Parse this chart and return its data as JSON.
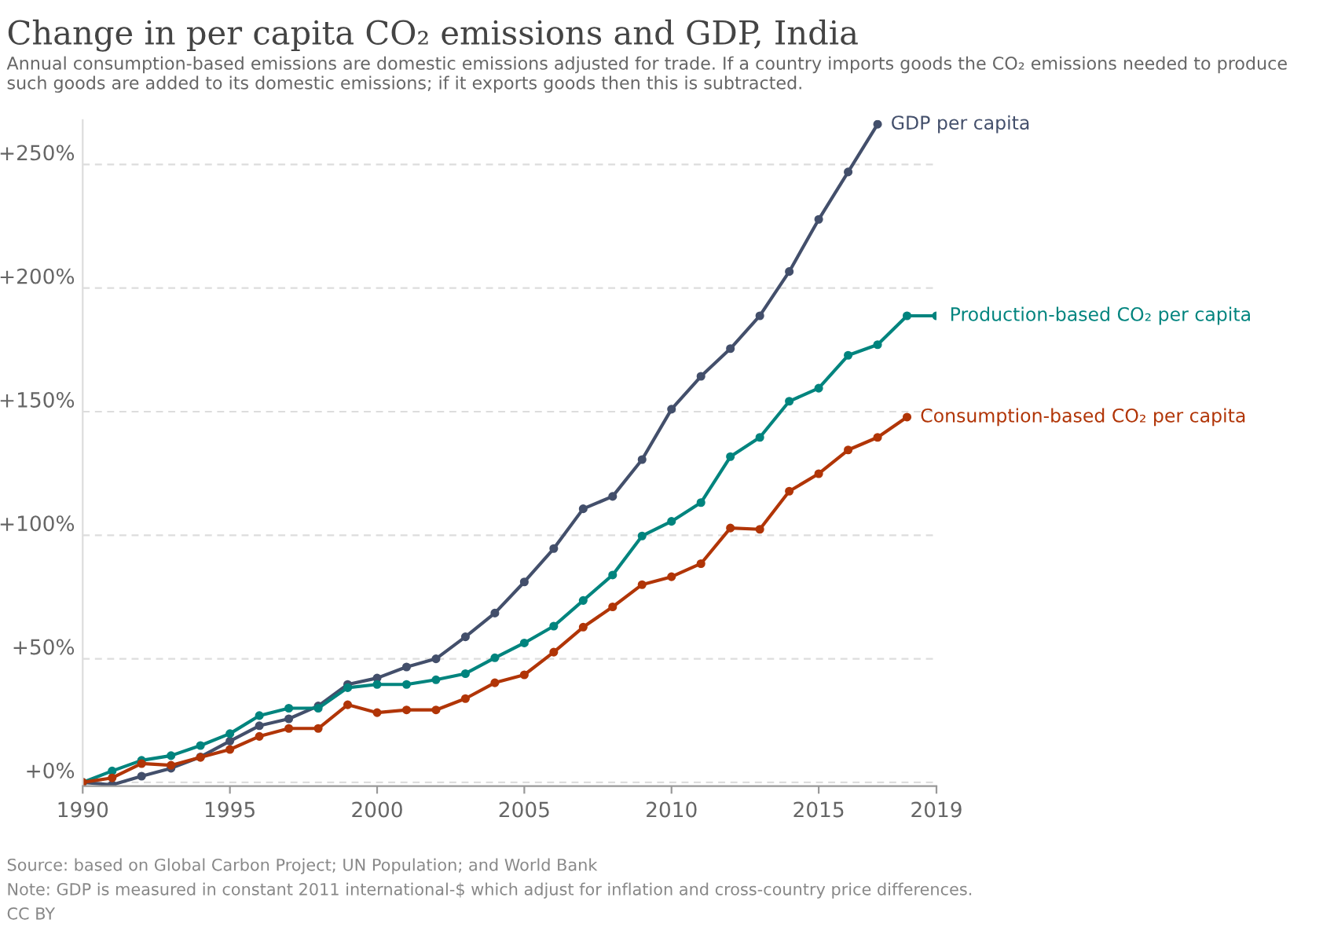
{
  "chart_data": {
    "type": "line",
    "title": "Change in per capita CO₂ emissions and GDP, India",
    "subtitle": "Annual consumption-based emissions are domestic emissions adjusted for trade. If a country imports goods the CO₂ emissions needed to produce such goods are added to its domestic emissions; if it exports goods then this is subtracted.",
    "x": [
      1990,
      1991,
      1992,
      1993,
      1994,
      1995,
      1996,
      1997,
      1998,
      1999,
      2000,
      2001,
      2002,
      2003,
      2004,
      2005,
      2006,
      2007,
      2008,
      2009,
      2010,
      2011,
      2012,
      2013,
      2014,
      2015,
      2016,
      2017,
      2018,
      2019
    ],
    "series": [
      {
        "name": "GDP per capita",
        "color": "#434f6b",
        "values": [
          0,
          -1,
          2.5,
          5.7,
          10.3,
          16.7,
          22.9,
          25.7,
          30.9,
          39.6,
          42.2,
          46.7,
          50.0,
          58.9,
          68.5,
          81.1,
          94.6,
          110.7,
          115.7,
          130.6,
          151.0,
          164.3,
          175.5,
          188.8,
          206.7,
          227.8,
          247.0,
          266.3,
          null,
          null
        ]
      },
      {
        "name": "Production-based CO₂ per capita",
        "color": "#00847e",
        "values": [
          0,
          4.6,
          8.9,
          10.8,
          14.9,
          19.7,
          27.0,
          30.0,
          30.0,
          38.3,
          39.6,
          39.6,
          41.5,
          44.0,
          50.4,
          56.4,
          63.2,
          73.6,
          83.9,
          99.7,
          105.6,
          113.2,
          131.8,
          139.6,
          154.2,
          159.5,
          172.8,
          177.1,
          188.8,
          188.8
        ]
      },
      {
        "name": "Consumption-based CO₂ per capita",
        "color": "#b13507",
        "values": [
          0,
          1.8,
          7.6,
          6.9,
          10.1,
          13.3,
          18.6,
          21.8,
          21.8,
          31.4,
          28.2,
          29.3,
          29.3,
          33.9,
          40.3,
          43.5,
          52.7,
          62.8,
          71.0,
          80.0,
          83.2,
          88.5,
          102.9,
          102.4,
          117.8,
          124.9,
          134.5,
          139.6,
          147.8,
          null
        ]
      }
    ],
    "xlim": [
      1990,
      2019
    ],
    "xticks": [
      1990,
      1995,
      2000,
      2005,
      2010,
      2015,
      2019
    ],
    "ylim": [
      -1.5,
      268
    ],
    "yticks": [
      {
        "value": 0,
        "label": "+0%"
      },
      {
        "value": 50,
        "label": "+50%"
      },
      {
        "value": 100,
        "label": "+100%"
      },
      {
        "value": 150,
        "label": "+150%"
      },
      {
        "value": 200,
        "label": "+200%"
      },
      {
        "value": 250,
        "label": "+250%"
      }
    ],
    "grid": "y",
    "legend": false,
    "marker": "circle",
    "line_style": "solid",
    "annotations": [
      "Source: based on Global Carbon Project; UN Population; and World Bank",
      "Note: GDP is measured in constant 2011 international-$ which adjust for inflation and cross-country price differences.",
      "CC BY"
    ]
  }
}
